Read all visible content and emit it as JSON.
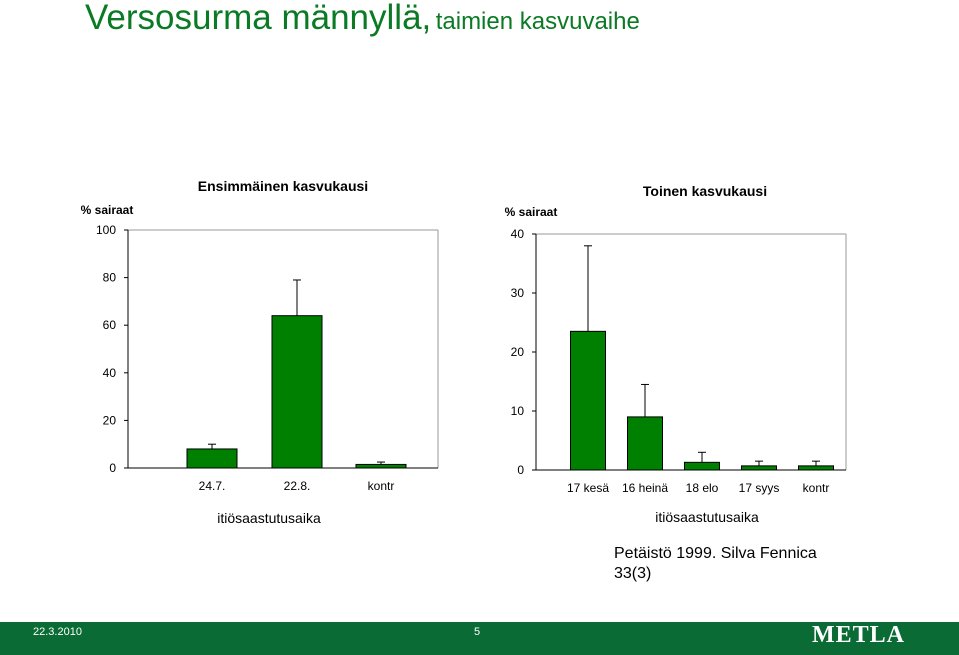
{
  "title": {
    "main": "Versosurma männyllä,",
    "sub": "taimien kasvuvaihe"
  },
  "reference": {
    "line1": "Petäistö 1999. Silva Fennica",
    "line2": "33(3)"
  },
  "footer": {
    "date": "22.3.2010",
    "page": "5",
    "logo": "METLA"
  },
  "colors": {
    "bar": "#008000",
    "title": "#0a7a24",
    "footer": "#0b6b34"
  },
  "chart_data": [
    {
      "type": "bar",
      "title": "Ensimmäinen kasvukausi",
      "ylabel": "% sairaat",
      "xlabel": "itiösaastutusaika",
      "categories": [
        "24.7.",
        "22.8.",
        "kontr"
      ],
      "values": [
        8,
        64,
        1.5
      ],
      "errors": [
        2,
        15,
        1
      ],
      "ylim": [
        0,
        100
      ],
      "yticks": [
        0,
        20,
        40,
        60,
        80,
        100
      ]
    },
    {
      "type": "bar",
      "title": "Toinen kasvukausi",
      "ylabel": "% sairaat",
      "xlabel": "itiösaastutusaika",
      "categories": [
        "17 kesä",
        "16 heinä",
        "18 elo",
        "17 syys",
        "kontr"
      ],
      "values": [
        23.5,
        9,
        1.3,
        0.7,
        0.7
      ],
      "errors": [
        14.5,
        5.5,
        1.7,
        0.8,
        0.8
      ],
      "ylim": [
        0,
        40
      ],
      "yticks": [
        0,
        10,
        20,
        30,
        40
      ]
    }
  ]
}
